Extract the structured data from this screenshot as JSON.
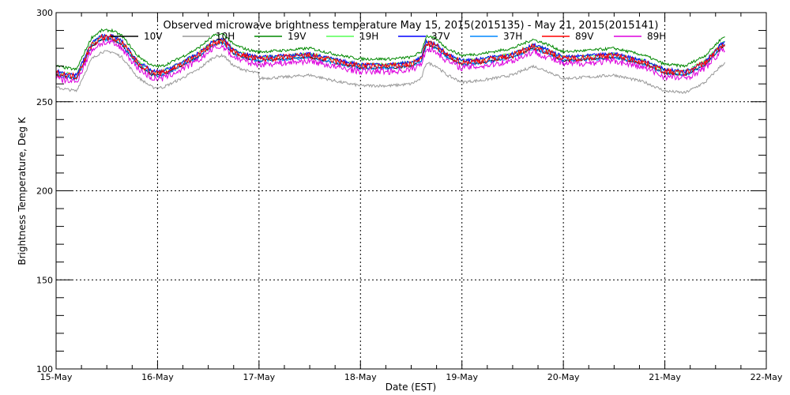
{
  "chart_data": {
    "type": "line",
    "title": "Observed microwave brightness temperature May 15, 2015(2015135) - May 21, 2015(2015141)",
    "xlabel": "Date (EST)",
    "ylabel": "Brightness Temperature, Deg K",
    "xlim": [
      0,
      7
    ],
    "ylim": [
      100,
      300
    ],
    "x_units": "days since 15-May-2015 00:00",
    "x_tick_labels": [
      "15-May",
      "16-May",
      "17-May",
      "18-May",
      "19-May",
      "20-May",
      "21-May",
      "22-May"
    ],
    "y_ticks": [
      100,
      150,
      200,
      250,
      300
    ],
    "grid": true,
    "legend": "top",
    "base_profile": {
      "x": [
        0,
        0.2,
        0.25,
        0.35,
        0.45,
        0.55,
        0.65,
        0.8,
        0.95,
        1.05,
        1.2,
        1.4,
        1.55,
        1.65,
        1.75,
        1.9,
        2.0,
        2.3,
        2.5,
        2.8,
        3.0,
        3.3,
        3.5,
        3.6,
        3.65,
        3.75,
        3.85,
        4.0,
        4.2,
        4.5,
        4.7,
        4.85,
        5.0,
        5.3,
        5.5,
        5.8,
        6.0,
        6.2,
        6.4,
        6.55,
        6.6
      ],
      "y": [
        266,
        264,
        270,
        282,
        286,
        286,
        283,
        272,
        266,
        266,
        270,
        276,
        283,
        284,
        278,
        275,
        274,
        275,
        276,
        272,
        270,
        270,
        271,
        274,
        283,
        281,
        276,
        272,
        273,
        276,
        281,
        278,
        274,
        275,
        276,
        272,
        267,
        266,
        272,
        281,
        283
      ]
    },
    "series": [
      {
        "name": "10V",
        "color": "#000000",
        "offset": -1,
        "noise": 0.6
      },
      {
        "name": "10H",
        "color": "#999999",
        "offset": -8,
        "noise": 0.8
      },
      {
        "name": "19V",
        "color": "#008800",
        "offset": 4,
        "noise": 0.8
      },
      {
        "name": "19H",
        "color": "#55ff55",
        "offset": 1,
        "noise": 0.8
      },
      {
        "name": "37V",
        "color": "#0000ff",
        "offset": 1,
        "noise": 1.0
      },
      {
        "name": "37H",
        "color": "#0088ff",
        "offset": -1,
        "noise": 1.0
      },
      {
        "name": "89V",
        "color": "#ff0000",
        "offset": 0,
        "noise": 1.8
      },
      {
        "name": "89H",
        "color": "#dd00dd",
        "offset": -3,
        "noise": 1.8
      }
    ]
  }
}
